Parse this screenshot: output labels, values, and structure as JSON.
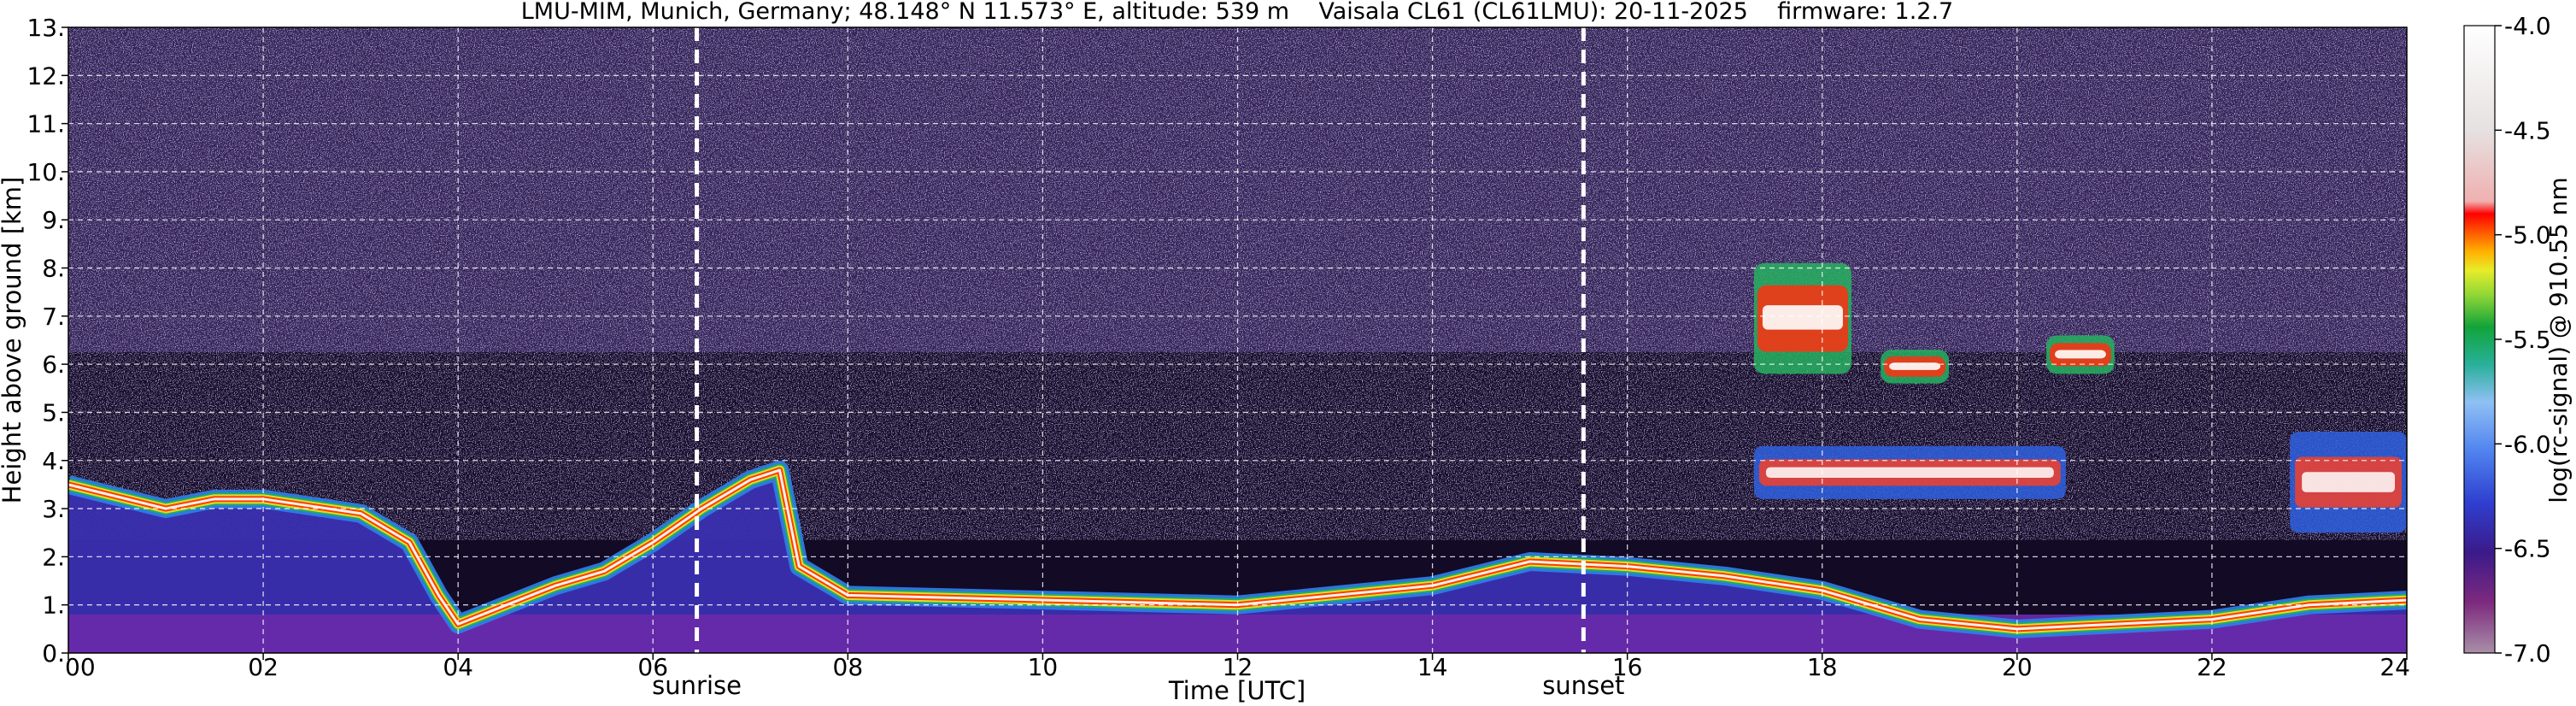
{
  "chart_data": {
    "type": "heatmap",
    "title": "LMU-MIM, Munich, Germany; 48.148° N 11.573° E, altitude: 539 m    Vaisala CL61 (CL61LMU): 20-11-2025    firmware: 1.2.7",
    "xlabel": "Time [UTC]",
    "ylabel": "Height above ground [km]",
    "xlim": [
      0,
      24
    ],
    "ylim": [
      0,
      13
    ],
    "x_ticks": [
      "00",
      "02",
      "04",
      "06",
      "08",
      "10",
      "12",
      "14",
      "16",
      "18",
      "20",
      "22",
      "24"
    ],
    "y_ticks": [
      "0.",
      "1.",
      "2.",
      "3.",
      "4.",
      "5.",
      "6.",
      "7.",
      "8.",
      "9.",
      "10.",
      "11.",
      "12.",
      "13."
    ],
    "grid": true,
    "colorbar": {
      "label": "log(rc-signal) @ 910.55 nm",
      "range": [
        -7.0,
        -4.0
      ],
      "ticks": [
        "-4.0",
        "-4.5",
        "-5.0",
        "-5.5",
        "-6.0",
        "-6.5",
        "-7.0"
      ]
    },
    "annotations": [
      {
        "label": "sunrise",
        "x": 6.45
      },
      {
        "label": "sunset",
        "x": 15.55
      }
    ],
    "features": {
      "boundary_layer_top_km": [
        [
          0,
          3.5
        ],
        [
          1,
          3.0
        ],
        [
          1.5,
          3.2
        ],
        [
          2,
          3.2
        ],
        [
          3,
          2.9
        ],
        [
          3.5,
          2.3
        ],
        [
          3.8,
          1.2
        ],
        [
          4,
          0.6
        ],
        [
          4.5,
          1.0
        ],
        [
          5,
          1.4
        ],
        [
          5.5,
          1.7
        ],
        [
          6,
          2.3
        ],
        [
          6.5,
          3.0
        ],
        [
          7,
          3.6
        ],
        [
          7.3,
          3.8
        ],
        [
          7.5,
          1.8
        ],
        [
          8,
          1.2
        ],
        [
          10,
          1.1
        ],
        [
          12,
          1.0
        ],
        [
          14,
          1.4
        ],
        [
          15,
          1.9
        ],
        [
          16,
          1.8
        ],
        [
          17,
          1.6
        ],
        [
          18,
          1.3
        ],
        [
          19,
          0.7
        ],
        [
          20,
          0.5
        ],
        [
          22,
          0.7
        ],
        [
          23,
          1.0
        ],
        [
          24,
          1.1
        ]
      ],
      "elevated_aerosol_layers": [
        {
          "t_start": 22.8,
          "t_end": 24,
          "base_km": 2.5,
          "top_km": 4.6
        },
        {
          "t_start": 17.3,
          "t_end": 20.5,
          "base_km": 3.2,
          "top_km": 4.3
        }
      ],
      "clouds": [
        {
          "t_start": 17.3,
          "t_end": 18.3,
          "base_km": 5.8,
          "top_km": 8.1
        },
        {
          "t_start": 18.6,
          "t_end": 19.3,
          "base_km": 5.6,
          "top_km": 6.3
        },
        {
          "t_start": 20.3,
          "t_end": 21.0,
          "base_km": 5.8,
          "top_km": 6.6
        }
      ]
    }
  }
}
